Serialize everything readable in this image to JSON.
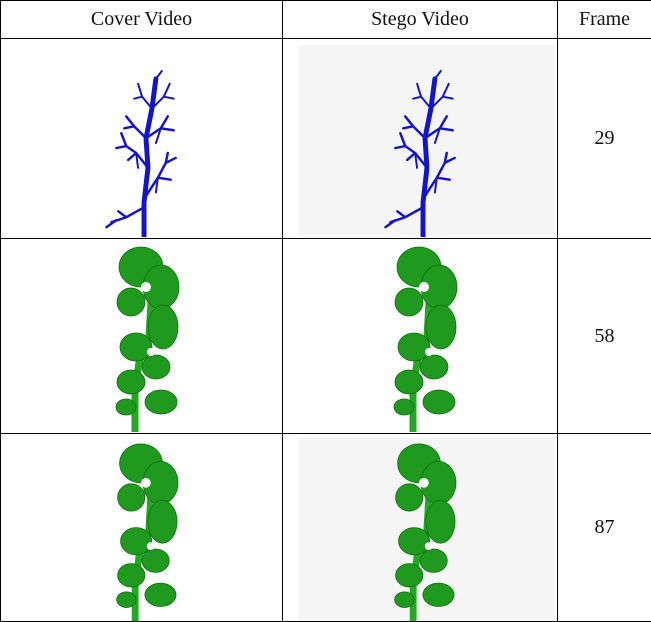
{
  "table": {
    "header": [
      "Cover Video",
      "Stego Video",
      "Frame"
    ],
    "rows": [
      {
        "frame": "29"
      },
      {
        "frame": "58"
      },
      {
        "frame": "87"
      }
    ]
  }
}
